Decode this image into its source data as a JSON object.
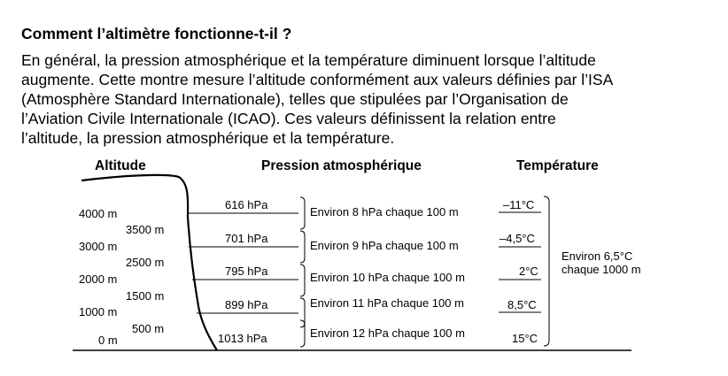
{
  "title": "Comment l’altimètre fonctionne-t-il ?",
  "paragraph_lines": [
    "En général, la pression atmosphérique et la température diminuent lorsque l’altitude",
    "augmente. Cette montre mesure l’altitude conformément aux valeurs définies par l’ISA",
    "(Atmosphère Standard Internationale), telles que stipulées par l’Organisation de",
    "l’Aviation Civile Internationale (ICAO). Ces valeurs définissent la relation entre",
    "l’altitude, la pression atmosphérique et la température."
  ],
  "headers": {
    "altitude": "Altitude",
    "pression": "Pression atmosphérique",
    "temperature": "Température"
  },
  "altitudes_major": [
    "4000 m",
    "3000 m",
    "2000 m",
    "1000 m",
    "0 m"
  ],
  "altitudes_minor": [
    "3500 m",
    "2500 m",
    "1500 m",
    "500 m"
  ],
  "pressures": [
    "616 hPa",
    "701 hPa",
    "795 hPa",
    "899 hPa",
    "1013 hPa"
  ],
  "rates": [
    "Environ 8 hPa chaque 100 m",
    "Environ 9 hPa chaque 100 m",
    "Environ 10 hPa chaque 100 m",
    "Environ 11 hPa chaque 100 m",
    "Environ 12 hPa chaque 100 m"
  ],
  "temperatures": [
    "–11°C",
    "–4,5°C",
    "2°C",
    "8,5°C",
    "15°C"
  ],
  "temperature_rate": [
    "Environ 6,5°C",
    "chaque 1000 m"
  ]
}
